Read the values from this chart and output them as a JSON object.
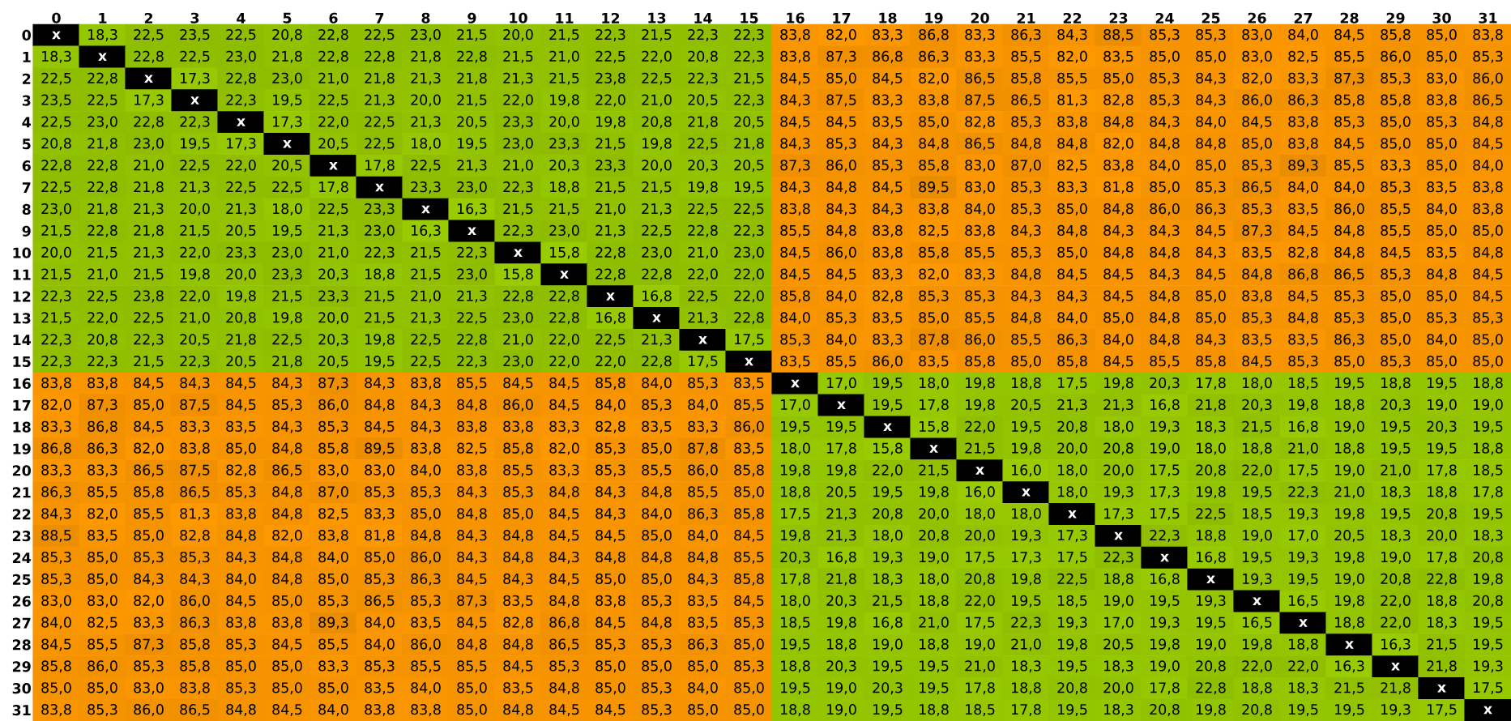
{
  "chart_data": {
    "type": "heatmap",
    "categories": [
      "0",
      "1",
      "2",
      "3",
      "4",
      "5",
      "6",
      "7",
      "8",
      "9",
      "10",
      "11",
      "12",
      "13",
      "14",
      "15",
      "16",
      "17",
      "18",
      "19",
      "20",
      "21",
      "22",
      "23",
      "24",
      "25",
      "26",
      "27",
      "28",
      "29",
      "30",
      "31"
    ],
    "y_categories": [
      "0",
      "1",
      "2",
      "3",
      "4",
      "5",
      "6",
      "7",
      "8",
      "9",
      "10",
      "11",
      "12",
      "13",
      "14",
      "15",
      "16",
      "17",
      "18",
      "19",
      "20",
      "21",
      "22",
      "23",
      "24",
      "25",
      "26",
      "27",
      "28",
      "29",
      "30",
      "31"
    ],
    "colors": [
      "#99cc00",
      "#ff9900"
    ],
    "cells": [
      [
        null,
        18.3,
        22.5,
        23.5,
        22.5,
        20.8,
        22.8,
        22.5,
        23.0,
        21.5,
        20.0,
        21.5,
        22.3,
        21.5,
        22.3,
        22.3,
        83.8,
        82.0,
        83.3,
        86.8,
        83.3,
        86.3,
        84.3,
        88.5,
        85.3,
        85.3,
        83.0,
        84.0,
        84.5,
        85.8,
        85.0,
        83.8
      ],
      [
        18.3,
        null,
        22.8,
        22.5,
        23.0,
        21.8,
        22.8,
        22.8,
        21.8,
        22.8,
        21.5,
        21.0,
        22.5,
        22.0,
        20.8,
        22.3,
        83.8,
        87.3,
        86.8,
        86.3,
        83.3,
        85.5,
        82.0,
        83.5,
        85.0,
        85.0,
        83.0,
        82.5,
        85.5,
        86.0,
        85.0,
        85.3
      ],
      [
        22.5,
        22.8,
        null,
        17.3,
        22.8,
        23.0,
        21.0,
        21.8,
        21.3,
        21.8,
        21.3,
        21.5,
        23.8,
        22.5,
        22.3,
        21.5,
        84.5,
        85.0,
        84.5,
        82.0,
        86.5,
        85.8,
        85.5,
        85.0,
        85.3,
        84.3,
        82.0,
        83.3,
        87.3,
        85.3,
        83.0,
        86.0
      ],
      [
        23.5,
        22.5,
        17.3,
        null,
        22.3,
        19.5,
        22.5,
        21.3,
        20.0,
        21.5,
        22.0,
        19.8,
        22.0,
        21.0,
        20.5,
        22.3,
        84.3,
        87.5,
        83.3,
        83.8,
        87.5,
        86.5,
        81.3,
        82.8,
        85.3,
        84.3,
        86.0,
        86.3,
        85.8,
        85.8,
        83.8,
        86.5
      ],
      [
        22.5,
        23.0,
        22.8,
        22.3,
        null,
        17.3,
        22.0,
        22.5,
        21.3,
        20.5,
        23.3,
        20.0,
        19.8,
        20.8,
        21.8,
        20.5,
        84.5,
        84.5,
        83.5,
        85.0,
        82.8,
        85.3,
        83.8,
        84.8,
        84.3,
        84.0,
        84.5,
        83.8,
        85.3,
        85.0,
        85.3,
        84.8
      ],
      [
        20.8,
        21.8,
        23.0,
        19.5,
        17.3,
        null,
        20.5,
        22.5,
        18.0,
        19.5,
        23.0,
        23.3,
        21.5,
        19.8,
        22.5,
        21.8,
        84.3,
        85.3,
        84.3,
        84.8,
        86.5,
        84.8,
        84.8,
        82.0,
        84.8,
        84.8,
        85.0,
        83.8,
        84.5,
        85.0,
        85.0,
        84.5
      ],
      [
        22.8,
        22.8,
        21.0,
        22.5,
        22.0,
        20.5,
        null,
        17.8,
        22.5,
        21.3,
        21.0,
        20.3,
        23.3,
        20.0,
        20.3,
        20.5,
        87.3,
        86.0,
        85.3,
        85.8,
        83.0,
        87.0,
        82.5,
        83.8,
        84.0,
        85.0,
        85.3,
        89.3,
        85.5,
        83.3,
        85.0,
        84.0
      ],
      [
        22.5,
        22.8,
        21.8,
        21.3,
        22.5,
        22.5,
        17.8,
        null,
        23.3,
        23.0,
        22.3,
        18.8,
        21.5,
        21.5,
        19.8,
        19.5,
        84.3,
        84.8,
        84.5,
        89.5,
        83.0,
        85.3,
        83.3,
        81.8,
        85.0,
        85.3,
        86.5,
        84.0,
        84.0,
        85.3,
        83.5,
        83.8
      ],
      [
        23.0,
        21.8,
        21.3,
        20.0,
        21.3,
        18.0,
        22.5,
        23.3,
        null,
        16.3,
        21.5,
        21.5,
        21.0,
        21.3,
        22.5,
        22.5,
        83.8,
        84.3,
        84.3,
        83.8,
        84.0,
        85.3,
        85.0,
        84.8,
        86.0,
        86.3,
        85.3,
        83.5,
        86.0,
        85.5,
        84.0,
        83.8
      ],
      [
        21.5,
        22.8,
        21.8,
        21.5,
        20.5,
        19.5,
        21.3,
        23.0,
        16.3,
        null,
        22.3,
        23.0,
        21.3,
        22.5,
        22.8,
        22.3,
        85.5,
        84.8,
        83.8,
        82.5,
        83.8,
        84.3,
        84.8,
        84.3,
        84.3,
        84.5,
        87.3,
        84.5,
        84.8,
        85.5,
        85.0,
        85.0
      ],
      [
        20.0,
        21.5,
        21.3,
        22.0,
        23.3,
        23.0,
        21.0,
        22.3,
        21.5,
        22.3,
        null,
        15.8,
        22.8,
        23.0,
        21.0,
        23.0,
        84.5,
        86.0,
        83.8,
        85.8,
        85.5,
        85.3,
        85.0,
        84.8,
        84.8,
        84.3,
        83.5,
        82.8,
        84.8,
        84.5,
        83.5,
        84.8
      ],
      [
        21.5,
        21.0,
        21.5,
        19.8,
        20.0,
        23.3,
        20.3,
        18.8,
        21.5,
        23.0,
        15.8,
        null,
        22.8,
        22.8,
        22.0,
        22.0,
        84.5,
        84.5,
        83.3,
        82.0,
        83.3,
        84.8,
        84.5,
        84.5,
        84.3,
        84.5,
        84.8,
        86.8,
        86.5,
        85.3,
        84.8,
        84.5
      ],
      [
        22.3,
        22.5,
        23.8,
        22.0,
        19.8,
        21.5,
        23.3,
        21.5,
        21.0,
        21.3,
        22.8,
        22.8,
        null,
        16.8,
        22.5,
        22.0,
        85.8,
        84.0,
        82.8,
        85.3,
        85.3,
        84.3,
        84.3,
        84.5,
        84.8,
        85.0,
        83.8,
        84.5,
        85.3,
        85.0,
        85.0,
        84.5
      ],
      [
        21.5,
        22.0,
        22.5,
        21.0,
        20.8,
        19.8,
        20.0,
        21.5,
        21.3,
        22.5,
        23.0,
        22.8,
        16.8,
        null,
        21.3,
        22.8,
        84.0,
        85.3,
        83.5,
        85.0,
        85.5,
        84.8,
        84.0,
        85.0,
        84.8,
        85.0,
        85.3,
        84.8,
        85.3,
        85.0,
        85.3,
        85.3
      ],
      [
        22.3,
        20.8,
        22.3,
        20.5,
        21.8,
        22.5,
        20.3,
        19.8,
        22.5,
        22.8,
        21.0,
        22.0,
        22.5,
        21.3,
        null,
        17.5,
        85.3,
        84.0,
        83.3,
        87.8,
        86.0,
        85.5,
        86.3,
        84.0,
        84.8,
        84.3,
        83.5,
        83.5,
        86.3,
        85.0,
        84.0,
        85.0
      ],
      [
        22.3,
        22.3,
        21.5,
        22.3,
        20.5,
        21.8,
        20.5,
        19.5,
        22.5,
        22.3,
        23.0,
        22.0,
        22.0,
        22.8,
        17.5,
        null,
        83.5,
        85.5,
        86.0,
        83.5,
        85.8,
        85.0,
        85.8,
        84.5,
        85.5,
        85.8,
        84.5,
        85.3,
        85.0,
        85.3,
        85.0,
        85.0
      ],
      [
        83.8,
        83.8,
        84.5,
        84.3,
        84.5,
        84.3,
        87.3,
        84.3,
        83.8,
        85.5,
        84.5,
        84.5,
        85.8,
        84.0,
        85.3,
        83.5,
        null,
        17.0,
        19.5,
        18.0,
        19.8,
        18.8,
        17.5,
        19.8,
        20.3,
        17.8,
        18.0,
        18.5,
        19.5,
        18.8,
        19.5,
        18.8
      ],
      [
        82.0,
        87.3,
        85.0,
        87.5,
        84.5,
        85.3,
        86.0,
        84.8,
        84.3,
        84.8,
        86.0,
        84.5,
        84.0,
        85.3,
        84.0,
        85.5,
        17.0,
        null,
        19.5,
        17.8,
        19.8,
        20.5,
        21.3,
        21.3,
        16.8,
        21.8,
        20.3,
        19.8,
        18.8,
        20.3,
        19.0,
        19.0
      ],
      [
        83.3,
        86.8,
        84.5,
        83.3,
        83.5,
        84.3,
        85.3,
        84.5,
        84.3,
        83.8,
        83.8,
        83.3,
        82.8,
        83.5,
        83.3,
        86.0,
        19.5,
        19.5,
        null,
        15.8,
        22.0,
        19.5,
        20.8,
        18.0,
        19.3,
        18.3,
        21.5,
        16.8,
        19.0,
        19.5,
        20.3,
        19.5
      ],
      [
        86.8,
        86.3,
        82.0,
        83.8,
        85.0,
        84.8,
        85.8,
        89.5,
        83.8,
        82.5,
        85.8,
        82.0,
        85.3,
        85.0,
        87.8,
        83.5,
        18.0,
        17.8,
        15.8,
        null,
        21.5,
        19.8,
        20.0,
        20.8,
        19.0,
        18.0,
        18.8,
        21.0,
        18.8,
        19.5,
        19.5,
        18.8
      ],
      [
        83.3,
        83.3,
        86.5,
        87.5,
        82.8,
        86.5,
        83.0,
        83.0,
        84.0,
        83.8,
        85.5,
        83.3,
        85.3,
        85.5,
        86.0,
        85.8,
        19.8,
        19.8,
        22.0,
        21.5,
        null,
        16.0,
        18.0,
        20.0,
        17.5,
        20.8,
        22.0,
        17.5,
        19.0,
        21.0,
        17.8,
        18.5
      ],
      [
        86.3,
        85.5,
        85.8,
        86.5,
        85.3,
        84.8,
        87.0,
        85.3,
        85.3,
        84.3,
        85.3,
        84.8,
        84.3,
        84.8,
        85.5,
        85.0,
        18.8,
        20.5,
        19.5,
        19.8,
        16.0,
        null,
        18.0,
        19.3,
        17.3,
        19.8,
        19.5,
        22.3,
        21.0,
        18.3,
        18.8,
        17.8
      ],
      [
        84.3,
        82.0,
        85.5,
        81.3,
        83.8,
        84.8,
        82.5,
        83.3,
        85.0,
        84.8,
        85.0,
        84.5,
        84.3,
        84.0,
        86.3,
        85.8,
        17.5,
        21.3,
        20.8,
        20.0,
        18.0,
        18.0,
        null,
        17.3,
        17.5,
        22.5,
        18.5,
        19.3,
        19.8,
        19.5,
        20.8,
        19.5
      ],
      [
        88.5,
        83.5,
        85.0,
        82.8,
        84.8,
        82.0,
        83.8,
        81.8,
        84.8,
        84.3,
        84.8,
        84.5,
        84.5,
        85.0,
        84.0,
        84.5,
        19.8,
        21.3,
        18.0,
        20.8,
        20.0,
        19.3,
        17.3,
        null,
        22.3,
        18.8,
        19.0,
        17.0,
        20.5,
        18.3,
        20.0,
        18.3
      ],
      [
        85.3,
        85.0,
        85.3,
        85.3,
        84.3,
        84.8,
        84.0,
        85.0,
        86.0,
        84.3,
        84.8,
        84.3,
        84.8,
        84.8,
        84.8,
        85.5,
        20.3,
        16.8,
        19.3,
        19.0,
        17.5,
        17.3,
        17.5,
        22.3,
        null,
        16.8,
        19.5,
        19.3,
        19.8,
        19.0,
        17.8,
        20.8
      ],
      [
        85.3,
        85.0,
        84.3,
        84.3,
        84.0,
        84.8,
        85.0,
        85.3,
        86.3,
        84.5,
        84.3,
        84.5,
        85.0,
        85.0,
        84.3,
        85.8,
        17.8,
        21.8,
        18.3,
        18.0,
        20.8,
        19.8,
        22.5,
        18.8,
        16.8,
        null,
        19.3,
        19.5,
        19.0,
        20.8,
        22.8,
        19.8
      ],
      [
        83.0,
        83.0,
        82.0,
        86.0,
        84.5,
        85.0,
        85.3,
        86.5,
        85.3,
        87.3,
        83.5,
        84.8,
        83.8,
        85.3,
        83.5,
        84.5,
        18.0,
        20.3,
        21.5,
        18.8,
        22.0,
        19.5,
        18.5,
        19.0,
        19.5,
        19.3,
        null,
        16.5,
        19.8,
        22.0,
        18.8,
        20.8
      ],
      [
        84.0,
        82.5,
        83.3,
        86.3,
        83.8,
        83.8,
        89.3,
        84.0,
        83.5,
        84.5,
        82.8,
        86.8,
        84.5,
        84.8,
        83.5,
        85.3,
        18.5,
        19.8,
        16.8,
        21.0,
        17.5,
        22.3,
        19.3,
        17.0,
        19.3,
        19.5,
        16.5,
        null,
        18.8,
        22.0,
        18.3,
        19.5
      ],
      [
        84.5,
        85.5,
        87.3,
        85.8,
        85.3,
        84.5,
        85.5,
        84.0,
        86.0,
        84.8,
        84.8,
        86.5,
        85.3,
        85.3,
        86.3,
        85.0,
        19.5,
        18.8,
        19.0,
        18.8,
        19.0,
        21.0,
        19.8,
        20.5,
        19.8,
        19.0,
        19.8,
        18.8,
        null,
        16.3,
        21.5,
        19.5
      ],
      [
        85.8,
        86.0,
        85.3,
        85.8,
        85.0,
        85.0,
        83.3,
        85.3,
        85.5,
        85.5,
        84.5,
        85.3,
        85.0,
        85.0,
        85.0,
        85.3,
        18.8,
        20.3,
        19.5,
        19.5,
        21.0,
        18.3,
        19.5,
        18.3,
        19.0,
        20.8,
        22.0,
        22.0,
        16.3,
        null,
        21.8,
        19.3
      ],
      [
        85.0,
        85.0,
        83.0,
        83.8,
        85.3,
        85.0,
        85.0,
        83.5,
        84.0,
        85.0,
        83.5,
        84.8,
        85.0,
        85.3,
        84.0,
        85.0,
        19.5,
        19.0,
        20.3,
        19.5,
        17.8,
        18.8,
        20.8,
        20.0,
        17.8,
        22.8,
        18.8,
        18.3,
        21.5,
        21.8,
        null,
        17.5
      ],
      [
        83.8,
        85.3,
        86.0,
        86.5,
        84.8,
        84.5,
        84.0,
        83.8,
        83.8,
        85.0,
        84.8,
        84.5,
        84.5,
        85.3,
        85.0,
        85.0,
        18.8,
        19.0,
        19.5,
        18.8,
        18.5,
        17.8,
        19.5,
        18.3,
        20.8,
        19.8,
        20.8,
        19.5,
        19.5,
        19.3,
        17.5,
        null
      ]
    ],
    "cell_labels": [
      [
        "x",
        "18,3",
        "22,5",
        "23,5",
        "22,5",
        "20,8",
        "22,8",
        "22,5",
        "23,0",
        "21,5",
        "20,0",
        "21,5",
        "22,3",
        "21,5",
        "22,3",
        "22,3",
        "83,8",
        "82,0",
        "83,3",
        "86,8",
        "83,3",
        "86,3",
        "84,3",
        "88,5",
        "85,3",
        "85,3",
        "83,0",
        "84,0",
        "84,5",
        "85,8",
        "85,0",
        "83,8"
      ],
      [
        "18,3",
        "x",
        "22,8",
        "22,5",
        "23,0",
        "21,8",
        "22,8",
        "22,8",
        "21,8",
        "22,8",
        "21,5",
        "21,0",
        "22,5",
        "22,0",
        "20,8",
        "22,3",
        "83,8",
        "87,3",
        "86,8",
        "86,3",
        "83,3",
        "85,5",
        "82,0",
        "83,5",
        "85,0",
        "85,0",
        "83,0",
        "82,5",
        "85,5",
        "86,0",
        "85,0",
        "85,3"
      ],
      [
        "22,5",
        "22,8",
        "x",
        "17,3",
        "22,8",
        "23,0",
        "21,0",
        "21,8",
        "21,3",
        "21,8",
        "21,3",
        "21,5",
        "23,8",
        "22,5",
        "22,3",
        "21,5",
        "84,5",
        "85,0",
        "84,5",
        "82,0",
        "86,5",
        "85,8",
        "85,5",
        "85,0",
        "85,3",
        "84,3",
        "82,0",
        "83,3",
        "87,3",
        "85,3",
        "83,0",
        "86,0"
      ],
      [
        "23,5",
        "22,5",
        "17,3",
        "x",
        "22,3",
        "19,5",
        "22,5",
        "21,3",
        "20,0",
        "21,5",
        "22,0",
        "19,8",
        "22,0",
        "21,0",
        "20,5",
        "22,3",
        "84,3",
        "87,5",
        "83,3",
        "83,8",
        "87,5",
        "86,5",
        "81,3",
        "82,8",
        "85,3",
        "84,3",
        "86,0",
        "86,3",
        "85,8",
        "85,8",
        "83,8",
        "86,5"
      ],
      [
        "22,5",
        "23,0",
        "22,8",
        "22,3",
        "x",
        "17,3",
        "22,0",
        "22,5",
        "21,3",
        "20,5",
        "23,3",
        "20,0",
        "19,8",
        "20,8",
        "21,8",
        "20,5",
        "84,5",
        "84,5",
        "83,5",
        "85,0",
        "82,8",
        "85,3",
        "83,8",
        "84,8",
        "84,3",
        "84,0",
        "84,5",
        "83,8",
        "85,3",
        "85,0",
        "85,3",
        "84,8"
      ],
      [
        "20,8",
        "21,8",
        "23,0",
        "19,5",
        "17,3",
        "x",
        "20,5",
        "22,5",
        "18,0",
        "19,5",
        "23,0",
        "23,3",
        "21,5",
        "19,8",
        "22,5",
        "21,8",
        "84,3",
        "85,3",
        "84,3",
        "84,8",
        "86,5",
        "84,8",
        "84,8",
        "82,0",
        "84,8",
        "84,8",
        "85,0",
        "83,8",
        "84,5",
        "85,0",
        "85,0",
        "84,5"
      ],
      [
        "22,8",
        "22,8",
        "21,0",
        "22,5",
        "22,0",
        "20,5",
        "x",
        "17,8",
        "22,5",
        "21,3",
        "21,0",
        "20,3",
        "23,3",
        "20,0",
        "20,3",
        "20,5",
        "87,3",
        "86,0",
        "85,3",
        "85,8",
        "83,0",
        "87,0",
        "82,5",
        "83,8",
        "84,0",
        "85,0",
        "85,3",
        "89,3",
        "85,5",
        "83,3",
        "85,0",
        "84,0"
      ],
      [
        "22,5",
        "22,8",
        "21,8",
        "21,3",
        "22,5",
        "22,5",
        "17,8",
        "x",
        "23,3",
        "23,0",
        "22,3",
        "18,8",
        "21,5",
        "21,5",
        "19,8",
        "19,5",
        "84,3",
        "84,8",
        "84,5",
        "89,5",
        "83,0",
        "85,3",
        "83,3",
        "81,8",
        "85,0",
        "85,3",
        "86,5",
        "84,0",
        "84,0",
        "85,3",
        "83,5",
        "83,8"
      ],
      [
        "23,0",
        "21,8",
        "21,3",
        "20,0",
        "21,3",
        "18,0",
        "22,5",
        "23,3",
        "x",
        "16,3",
        "21,5",
        "21,5",
        "21,0",
        "21,3",
        "22,5",
        "22,5",
        "83,8",
        "84,3",
        "84,3",
        "83,8",
        "84,0",
        "85,3",
        "85,0",
        "84,8",
        "86,0",
        "86,3",
        "85,3",
        "83,5",
        "86,0",
        "85,5",
        "84,0",
        "83,8"
      ],
      [
        "21,5",
        "22,8",
        "21,8",
        "21,5",
        "20,5",
        "19,5",
        "21,3",
        "23,0",
        "16,3",
        "x",
        "22,3",
        "23,0",
        "21,3",
        "22,5",
        "22,8",
        "22,3",
        "85,5",
        "84,8",
        "83,8",
        "82,5",
        "83,8",
        "84,3",
        "84,8",
        "84,3",
        "84,3",
        "84,5",
        "87,3",
        "84,5",
        "84,8",
        "85,5",
        "85,0",
        "85,0"
      ],
      [
        "20,0",
        "21,5",
        "21,3",
        "22,0",
        "23,3",
        "23,0",
        "21,0",
        "22,3",
        "21,5",
        "22,3",
        "x",
        "15,8",
        "22,8",
        "23,0",
        "21,0",
        "23,0",
        "84,5",
        "86,0",
        "83,8",
        "85,8",
        "85,5",
        "85,3",
        "85,0",
        "84,8",
        "84,8",
        "84,3",
        "83,5",
        "82,8",
        "84,8",
        "84,5",
        "83,5",
        "84,8"
      ],
      [
        "21,5",
        "21,0",
        "21,5",
        "19,8",
        "20,0",
        "23,3",
        "20,3",
        "18,8",
        "21,5",
        "23,0",
        "15,8",
        "x",
        "22,8",
        "22,8",
        "22,0",
        "22,0",
        "84,5",
        "84,5",
        "83,3",
        "82,0",
        "83,3",
        "84,8",
        "84,5",
        "84,5",
        "84,3",
        "84,5",
        "84,8",
        "86,8",
        "86,5",
        "85,3",
        "84,8",
        "84,5"
      ],
      [
        "22,3",
        "22,5",
        "23,8",
        "22,0",
        "19,8",
        "21,5",
        "23,3",
        "21,5",
        "21,0",
        "21,3",
        "22,8",
        "22,8",
        "x",
        "16,8",
        "22,5",
        "22,0",
        "85,8",
        "84,0",
        "82,8",
        "85,3",
        "85,3",
        "84,3",
        "84,3",
        "84,5",
        "84,8",
        "85,0",
        "83,8",
        "84,5",
        "85,3",
        "85,0",
        "85,0",
        "84,5"
      ],
      [
        "21,5",
        "22,0",
        "22,5",
        "21,0",
        "20,8",
        "19,8",
        "20,0",
        "21,5",
        "21,3",
        "22,5",
        "23,0",
        "22,8",
        "16,8",
        "x",
        "21,3",
        "22,8",
        "84,0",
        "85,3",
        "83,5",
        "85,0",
        "85,5",
        "84,8",
        "84,0",
        "85,0",
        "84,8",
        "85,0",
        "85,3",
        "84,8",
        "85,3",
        "85,0",
        "85,3",
        "85,3"
      ],
      [
        "22,3",
        "20,8",
        "22,3",
        "20,5",
        "21,8",
        "22,5",
        "20,3",
        "19,8",
        "22,5",
        "22,8",
        "21,0",
        "22,0",
        "22,5",
        "21,3",
        "x",
        "17,5",
        "85,3",
        "84,0",
        "83,3",
        "87,8",
        "86,0",
        "85,5",
        "86,3",
        "84,0",
        "84,8",
        "84,3",
        "83,5",
        "83,5",
        "86,3",
        "85,0",
        "84,0",
        "85,0"
      ],
      [
        "22,3",
        "22,3",
        "21,5",
        "22,3",
        "20,5",
        "21,8",
        "20,5",
        "19,5",
        "22,5",
        "22,3",
        "23,0",
        "22,0",
        "22,0",
        "22,8",
        "17,5",
        "x",
        "83,5",
        "85,5",
        "86,0",
        "83,5",
        "85,8",
        "85,0",
        "85,8",
        "84,5",
        "85,5",
        "85,8",
        "84,5",
        "85,3",
        "85,0",
        "85,3",
        "85,0",
        "85,0"
      ],
      [
        "83,8",
        "83,8",
        "84,5",
        "84,3",
        "84,5",
        "84,3",
        "87,3",
        "84,3",
        "83,8",
        "85,5",
        "84,5",
        "84,5",
        "85,8",
        "84,0",
        "85,3",
        "83,5",
        "x",
        "17,0",
        "19,5",
        "18,0",
        "19,8",
        "18,8",
        "17,5",
        "19,8",
        "20,3",
        "17,8",
        "18,0",
        "18,5",
        "19,5",
        "18,8",
        "19,5",
        "18,8"
      ],
      [
        "82,0",
        "87,3",
        "85,0",
        "87,5",
        "84,5",
        "85,3",
        "86,0",
        "84,8",
        "84,3",
        "84,8",
        "86,0",
        "84,5",
        "84,0",
        "85,3",
        "84,0",
        "85,5",
        "17,0",
        "x",
        "19,5",
        "17,8",
        "19,8",
        "20,5",
        "21,3",
        "21,3",
        "16,8",
        "21,8",
        "20,3",
        "19,8",
        "18,8",
        "20,3",
        "19,0",
        "19,0"
      ],
      [
        "83,3",
        "86,8",
        "84,5",
        "83,3",
        "83,5",
        "84,3",
        "85,3",
        "84,5",
        "84,3",
        "83,8",
        "83,8",
        "83,3",
        "82,8",
        "83,5",
        "83,3",
        "86,0",
        "19,5",
        "19,5",
        "x",
        "15,8",
        "22,0",
        "19,5",
        "20,8",
        "18,0",
        "19,3",
        "18,3",
        "21,5",
        "16,8",
        "19,0",
        "19,5",
        "20,3",
        "19,5"
      ],
      [
        "86,8",
        "86,3",
        "82,0",
        "83,8",
        "85,0",
        "84,8",
        "85,8",
        "89,5",
        "83,8",
        "82,5",
        "85,8",
        "82,0",
        "85,3",
        "85,0",
        "87,8",
        "83,5",
        "18,0",
        "17,8",
        "15,8",
        "x",
        "21,5",
        "19,8",
        "20,0",
        "20,8",
        "19,0",
        "18,0",
        "18,8",
        "21,0",
        "18,8",
        "19,5",
        "19,5",
        "18,8"
      ],
      [
        "83,3",
        "83,3",
        "86,5",
        "87,5",
        "82,8",
        "86,5",
        "83,0",
        "83,0",
        "84,0",
        "83,8",
        "85,5",
        "83,3",
        "85,3",
        "85,5",
        "86,0",
        "85,8",
        "19,8",
        "19,8",
        "22,0",
        "21,5",
        "x",
        "16,0",
        "18,0",
        "20,0",
        "17,5",
        "20,8",
        "22,0",
        "17,5",
        "19,0",
        "21,0",
        "17,8",
        "18,5"
      ],
      [
        "86,3",
        "85,5",
        "85,8",
        "86,5",
        "85,3",
        "84,8",
        "87,0",
        "85,3",
        "85,3",
        "84,3",
        "85,3",
        "84,8",
        "84,3",
        "84,8",
        "85,5",
        "85,0",
        "18,8",
        "20,5",
        "19,5",
        "19,8",
        "16,0",
        "x",
        "18,0",
        "19,3",
        "17,3",
        "19,8",
        "19,5",
        "22,3",
        "21,0",
        "18,3",
        "18,8",
        "17,8"
      ],
      [
        "84,3",
        "82,0",
        "85,5",
        "81,3",
        "83,8",
        "84,8",
        "82,5",
        "83,3",
        "85,0",
        "84,8",
        "85,0",
        "84,5",
        "84,3",
        "84,0",
        "86,3",
        "85,8",
        "17,5",
        "21,3",
        "20,8",
        "20,0",
        "18,0",
        "18,0",
        "x",
        "17,3",
        "17,5",
        "22,5",
        "18,5",
        "19,3",
        "19,8",
        "19,5",
        "20,8",
        "19,5"
      ],
      [
        "88,5",
        "83,5",
        "85,0",
        "82,8",
        "84,8",
        "82,0",
        "83,8",
        "81,8",
        "84,8",
        "84,3",
        "84,8",
        "84,5",
        "84,5",
        "85,0",
        "84,0",
        "84,5",
        "19,8",
        "21,3",
        "18,0",
        "20,8",
        "20,0",
        "19,3",
        "17,3",
        "x",
        "22,3",
        "18,8",
        "19,0",
        "17,0",
        "20,5",
        "18,3",
        "20,0",
        "18,3"
      ],
      [
        "85,3",
        "85,0",
        "85,3",
        "85,3",
        "84,3",
        "84,8",
        "84,0",
        "85,0",
        "86,0",
        "84,3",
        "84,8",
        "84,3",
        "84,8",
        "84,8",
        "84,8",
        "85,5",
        "20,3",
        "16,8",
        "19,3",
        "19,0",
        "17,5",
        "17,3",
        "17,5",
        "22,3",
        "x",
        "16,8",
        "19,5",
        "19,3",
        "19,8",
        "19,0",
        "17,8",
        "20,8"
      ],
      [
        "85,3",
        "85,0",
        "84,3",
        "84,3",
        "84,0",
        "84,8",
        "85,0",
        "85,3",
        "86,3",
        "84,5",
        "84,3",
        "84,5",
        "85,0",
        "85,0",
        "84,3",
        "85,8",
        "17,8",
        "21,8",
        "18,3",
        "18,0",
        "20,8",
        "19,8",
        "22,5",
        "18,8",
        "16,8",
        "x",
        "19,3",
        "19,5",
        "19,0",
        "20,8",
        "22,8",
        "19,8"
      ],
      [
        "83,0",
        "83,0",
        "82,0",
        "86,0",
        "84,5",
        "85,0",
        "85,3",
        "86,5",
        "85,3",
        "87,3",
        "83,5",
        "84,8",
        "83,8",
        "85,3",
        "83,5",
        "84,5",
        "18,0",
        "20,3",
        "21,5",
        "18,8",
        "22,0",
        "19,5",
        "18,5",
        "19,0",
        "19,5",
        "19,3",
        "x",
        "16,5",
        "19,8",
        "22,0",
        "18,8",
        "20,8"
      ],
      [
        "84,0",
        "82,5",
        "83,3",
        "86,3",
        "83,8",
        "83,8",
        "89,3",
        "84,0",
        "83,5",
        "84,5",
        "82,8",
        "86,8",
        "84,5",
        "84,8",
        "83,5",
        "85,3",
        "18,5",
        "19,8",
        "16,8",
        "21,0",
        "17,5",
        "22,3",
        "19,3",
        "17,0",
        "19,3",
        "19,5",
        "16,5",
        "x",
        "18,8",
        "22,0",
        "18,3",
        "19,5"
      ],
      [
        "84,5",
        "85,5",
        "87,3",
        "85,8",
        "85,3",
        "84,5",
        "85,5",
        "84,0",
        "86,0",
        "84,8",
        "84,8",
        "86,5",
        "85,3",
        "85,3",
        "86,3",
        "85,0",
        "19,5",
        "18,8",
        "19,0",
        "18,8",
        "19,0",
        "21,0",
        "19,8",
        "20,5",
        "19,8",
        "19,0",
        "19,8",
        "18,8",
        "x",
        "16,3",
        "21,5",
        "19,5"
      ],
      [
        "85,8",
        "86,0",
        "85,3",
        "85,8",
        "85,0",
        "85,0",
        "83,3",
        "85,3",
        "85,5",
        "85,5",
        "84,5",
        "85,3",
        "85,0",
        "85,0",
        "85,0",
        "85,3",
        "18,8",
        "20,3",
        "19,5",
        "19,5",
        "21,0",
        "18,3",
        "19,5",
        "18,3",
        "19,0",
        "20,8",
        "22,0",
        "22,0",
        "16,3",
        "x",
        "21,8",
        "19,3"
      ],
      [
        "85,0",
        "85,0",
        "83,0",
        "83,8",
        "85,3",
        "85,0",
        "85,0",
        "83,5",
        "84,0",
        "85,0",
        "83,5",
        "84,8",
        "85,0",
        "85,3",
        "84,0",
        "85,0",
        "19,5",
        "19,0",
        "20,3",
        "19,5",
        "17,8",
        "18,8",
        "20,8",
        "20,0",
        "17,8",
        "22,8",
        "18,8",
        "18,3",
        "21,5",
        "21,8",
        "x",
        "17,5"
      ],
      [
        "83,8",
        "85,3",
        "86,0",
        "86,5",
        "84,8",
        "84,5",
        "84,0",
        "83,8",
        "83,8",
        "85,0",
        "84,8",
        "84,5",
        "84,5",
        "85,3",
        "85,0",
        "85,0",
        "18,8",
        "19,0",
        "19,5",
        "18,8",
        "18,5",
        "17,8",
        "19,5",
        "18,3",
        "20,8",
        "19,8",
        "20,8",
        "19,5",
        "19,5",
        "19,3",
        "17,5",
        "x"
      ]
    ]
  }
}
